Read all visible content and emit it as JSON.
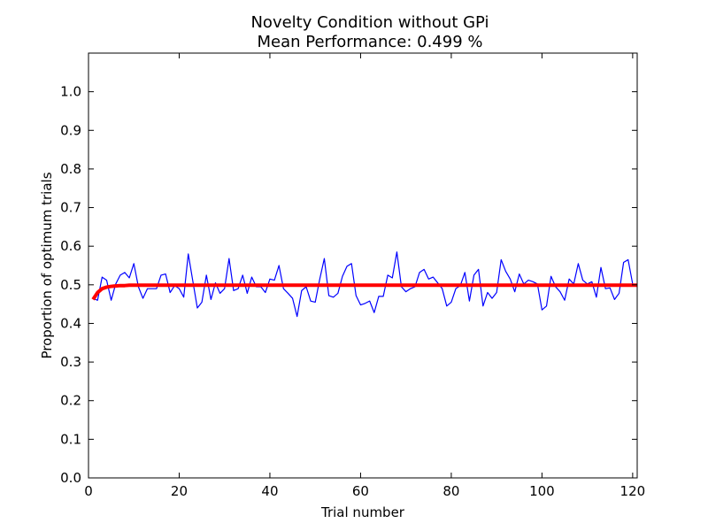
{
  "chart_data": {
    "type": "line",
    "title": "Novelty Condition without GPi",
    "subtitle": "Mean Performance: 0.499 %",
    "xlabel": "Trial number",
    "ylabel": "Proportion of optimum trials",
    "xlim": [
      0,
      121
    ],
    "ylim": [
      0.0,
      1.1
    ],
    "xticks": [
      0,
      20,
      40,
      60,
      80,
      100,
      120
    ],
    "xtick_labels": [
      "0",
      "20",
      "40",
      "60",
      "80",
      "100",
      "120"
    ],
    "yticks": [
      0.0,
      0.1,
      0.2,
      0.3,
      0.4,
      0.5,
      0.6,
      0.7,
      0.8,
      0.9,
      1.0
    ],
    "ytick_labels": [
      "0.0",
      "0.1",
      "0.2",
      "0.3",
      "0.4",
      "0.5",
      "0.6",
      "0.7",
      "0.8",
      "0.9",
      "1.0"
    ],
    "grid": false,
    "legend": "none",
    "series": [
      {
        "color": "#0000ff",
        "x": [
          1,
          2,
          3,
          4,
          5,
          6,
          7,
          8,
          9,
          10,
          11,
          12,
          13,
          14,
          15,
          16,
          17,
          18,
          19,
          20,
          21,
          22,
          23,
          24,
          25,
          26,
          27,
          28,
          29,
          30,
          31,
          32,
          33,
          34,
          35,
          36,
          37,
          38,
          39,
          40,
          41,
          42,
          43,
          44,
          45,
          46,
          47,
          48,
          49,
          50,
          51,
          52,
          53,
          54,
          55,
          56,
          57,
          58,
          59,
          60,
          61,
          62,
          63,
          64,
          65,
          66,
          67,
          68,
          69,
          70,
          71,
          72,
          73,
          74,
          75,
          76,
          77,
          78,
          79,
          80,
          81,
          82,
          83,
          84,
          85,
          86,
          87,
          88,
          89,
          90,
          91,
          92,
          93,
          94,
          95,
          96,
          97,
          98,
          99,
          100,
          101,
          102,
          103,
          104,
          105,
          106,
          107,
          108,
          109,
          110,
          111,
          112,
          113,
          114,
          115,
          116,
          117,
          118,
          119,
          120,
          121
        ],
        "y": [
          0.465,
          0.46,
          0.52,
          0.512,
          0.46,
          0.502,
          0.525,
          0.532,
          0.518,
          0.555,
          0.495,
          0.465,
          0.49,
          0.49,
          0.49,
          0.525,
          0.528,
          0.48,
          0.498,
          0.49,
          0.468,
          0.58,
          0.51,
          0.44,
          0.455,
          0.525,
          0.462,
          0.505,
          0.478,
          0.49,
          0.568,
          0.485,
          0.49,
          0.525,
          0.478,
          0.52,
          0.495,
          0.495,
          0.48,
          0.515,
          0.512,
          0.55,
          0.49,
          0.478,
          0.465,
          0.418,
          0.485,
          0.495,
          0.458,
          0.455,
          0.515,
          0.568,
          0.472,
          0.468,
          0.478,
          0.522,
          0.548,
          0.555,
          0.472,
          0.448,
          0.452,
          0.458,
          0.428,
          0.47,
          0.47,
          0.525,
          0.518,
          0.585,
          0.495,
          0.482,
          0.49,
          0.495,
          0.532,
          0.54,
          0.515,
          0.52,
          0.505,
          0.49,
          0.445,
          0.455,
          0.49,
          0.498,
          0.532,
          0.458,
          0.525,
          0.54,
          0.445,
          0.48,
          0.465,
          0.48,
          0.565,
          0.535,
          0.515,
          0.482,
          0.528,
          0.502,
          0.512,
          0.508,
          0.502,
          0.435,
          0.445,
          0.522,
          0.495,
          0.482,
          0.46,
          0.515,
          0.502,
          0.555,
          0.512,
          0.502,
          0.508,
          0.468,
          0.545,
          0.49,
          0.492,
          0.462,
          0.478,
          0.558,
          0.565,
          0.502,
          0.5
        ]
      },
      {
        "color": "#ff0000",
        "x": [
          1,
          2,
          3,
          4,
          5,
          6,
          7,
          8,
          9,
          10,
          12,
          15,
          20,
          30,
          40,
          50,
          60,
          70,
          80,
          90,
          100,
          110,
          121
        ],
        "y": [
          0.462,
          0.48,
          0.49,
          0.494,
          0.496,
          0.497,
          0.498,
          0.498,
          0.499,
          0.499,
          0.499,
          0.499,
          0.499,
          0.499,
          0.499,
          0.499,
          0.499,
          0.499,
          0.499,
          0.499,
          0.499,
          0.499,
          0.499
        ]
      }
    ]
  }
}
